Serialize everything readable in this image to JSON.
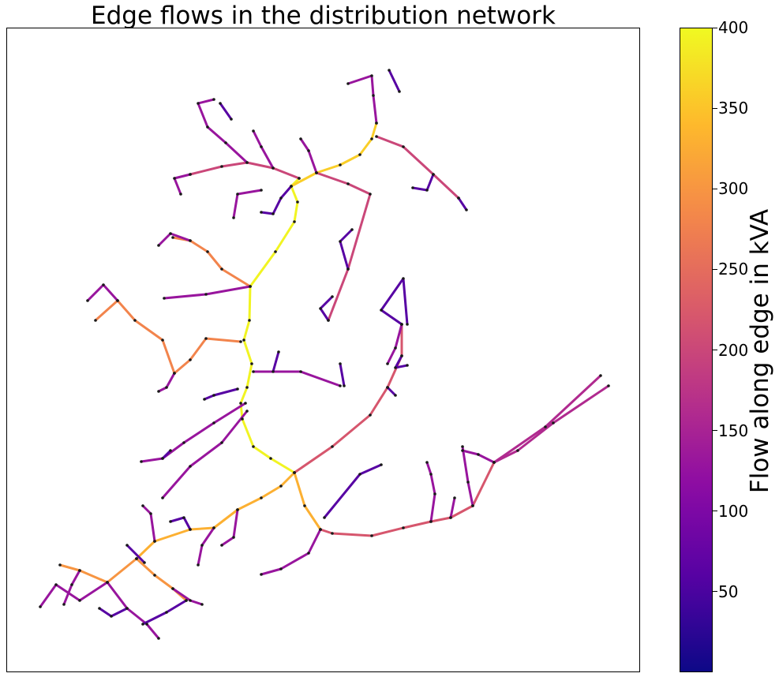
{
  "chart_data": {
    "type": "network",
    "title": "Edge flows in the distribution network",
    "colorbar": {
      "label": "Flow along edge in kVA",
      "colormap": "plasma",
      "range": [
        0,
        400
      ],
      "ticks": [
        50,
        100,
        150,
        200,
        250,
        300,
        350,
        400
      ]
    },
    "axes": {
      "xticks": "none",
      "yticks": "none",
      "frame": true
    },
    "edge_flow_kva": {
      "main_feeder_trunk": 395,
      "central_branch": 330,
      "southwest_branch": 300,
      "southeast_long_branch": 240,
      "east_branch": 220,
      "north_cluster": 360,
      "west_branch": 280,
      "north_branch": 200,
      "far_east_branch": 160,
      "lateral_typical": 130,
      "lateral_low": 60
    },
    "node_color": "#1a1a1a"
  }
}
